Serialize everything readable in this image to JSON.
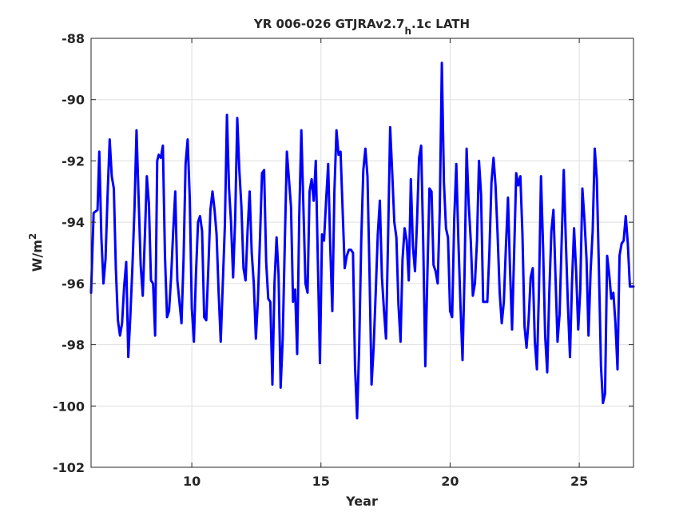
{
  "chart_data": {
    "type": "line",
    "title_parts": [
      "YR 006-026 GTJRAv2.7",
      "h",
      ".1c LATH"
    ],
    "xlabel": "Year",
    "ylabel": "W/m",
    "ylabel_sup": "2",
    "xlim": [
      6.1,
      27.1
    ],
    "ylim": [
      -102,
      -88
    ],
    "xticks": [
      10,
      15,
      20,
      25
    ],
    "yticks": [
      -102,
      -100,
      -98,
      -96,
      -94,
      -92,
      -90,
      -88
    ],
    "grid": true,
    "color": "#0000ff",
    "series": [
      {
        "values": [
          [
            6.1,
            -96.3
          ],
          [
            6.2,
            -93.7
          ],
          [
            6.35,
            -93.6
          ],
          [
            6.42,
            -91.7
          ],
          [
            6.5,
            -94.5
          ],
          [
            6.58,
            -96.0
          ],
          [
            6.66,
            -95.2
          ],
          [
            6.74,
            -93.1
          ],
          [
            6.82,
            -91.3
          ],
          [
            6.9,
            -92.5
          ],
          [
            6.98,
            -92.9
          ],
          [
            7.06,
            -95.5
          ],
          [
            7.14,
            -97.2
          ],
          [
            7.22,
            -97.7
          ],
          [
            7.3,
            -97.3
          ],
          [
            7.38,
            -96.1
          ],
          [
            7.46,
            -95.3
          ],
          [
            7.54,
            -98.4
          ],
          [
            7.62,
            -97.1
          ],
          [
            7.7,
            -95.5
          ],
          [
            7.78,
            -93.6
          ],
          [
            7.86,
            -91.0
          ],
          [
            7.94,
            -93.2
          ],
          [
            8.02,
            -95.4
          ],
          [
            8.1,
            -96.4
          ],
          [
            8.18,
            -94.5
          ],
          [
            8.26,
            -92.5
          ],
          [
            8.34,
            -93.4
          ],
          [
            8.42,
            -95.9
          ],
          [
            8.5,
            -96.0
          ],
          [
            8.58,
            -97.7
          ],
          [
            8.66,
            -92.0
          ],
          [
            8.72,
            -91.8
          ],
          [
            8.8,
            -91.9
          ],
          [
            8.88,
            -91.5
          ],
          [
            8.96,
            -95.1
          ],
          [
            9.04,
            -97.1
          ],
          [
            9.12,
            -96.9
          ],
          [
            9.2,
            -95.8
          ],
          [
            9.28,
            -94.3
          ],
          [
            9.36,
            -93.0
          ],
          [
            9.44,
            -95.9
          ],
          [
            9.52,
            -96.6
          ],
          [
            9.6,
            -97.3
          ],
          [
            9.68,
            -95.2
          ],
          [
            9.76,
            -92.1
          ],
          [
            9.84,
            -91.3
          ],
          [
            9.92,
            -93.2
          ],
          [
            10.0,
            -96.8
          ],
          [
            10.08,
            -97.9
          ],
          [
            10.16,
            -95.7
          ],
          [
            10.24,
            -94.0
          ],
          [
            10.32,
            -93.8
          ],
          [
            10.4,
            -94.3
          ],
          [
            10.48,
            -97.1
          ],
          [
            10.56,
            -97.2
          ],
          [
            10.64,
            -95.5
          ],
          [
            10.72,
            -93.6
          ],
          [
            10.8,
            -93.0
          ],
          [
            10.88,
            -93.6
          ],
          [
            10.96,
            -94.4
          ],
          [
            11.04,
            -96.3
          ],
          [
            11.12,
            -97.9
          ],
          [
            11.2,
            -96.0
          ],
          [
            11.28,
            -94.1
          ],
          [
            11.36,
            -90.5
          ],
          [
            11.44,
            -92.9
          ],
          [
            11.52,
            -94.0
          ],
          [
            11.6,
            -95.8
          ],
          [
            11.68,
            -93.9
          ],
          [
            11.76,
            -90.6
          ],
          [
            11.84,
            -92.3
          ],
          [
            11.92,
            -93.5
          ],
          [
            12.0,
            -95.5
          ],
          [
            12.08,
            -95.9
          ],
          [
            12.16,
            -94.3
          ],
          [
            12.24,
            -93.0
          ],
          [
            12.32,
            -95.0
          ],
          [
            12.4,
            -96.0
          ],
          [
            12.48,
            -97.8
          ],
          [
            12.56,
            -96.5
          ],
          [
            12.64,
            -94.5
          ],
          [
            12.72,
            -92.4
          ],
          [
            12.8,
            -92.3
          ],
          [
            12.88,
            -95.3
          ],
          [
            12.96,
            -96.5
          ],
          [
            13.04,
            -96.6
          ],
          [
            13.12,
            -99.3
          ],
          [
            13.2,
            -96.0
          ],
          [
            13.28,
            -94.5
          ],
          [
            13.36,
            -95.7
          ],
          [
            13.44,
            -99.4
          ],
          [
            13.52,
            -97.8
          ],
          [
            13.6,
            -94.7
          ],
          [
            13.68,
            -91.7
          ],
          [
            13.76,
            -92.6
          ],
          [
            13.84,
            -93.5
          ],
          [
            13.92,
            -96.6
          ],
          [
            14.0,
            -96.2
          ],
          [
            14.08,
            -98.3
          ],
          [
            14.16,
            -93.8
          ],
          [
            14.24,
            -91.0
          ],
          [
            14.32,
            -93.5
          ],
          [
            14.4,
            -96.0
          ],
          [
            14.48,
            -96.3
          ],
          [
            14.56,
            -93.0
          ],
          [
            14.64,
            -92.6
          ],
          [
            14.72,
            -93.3
          ],
          [
            14.8,
            -92.0
          ],
          [
            14.88,
            -95.3
          ],
          [
            14.96,
            -98.6
          ],
          [
            15.04,
            -94.4
          ],
          [
            15.12,
            -94.6
          ],
          [
            15.2,
            -93.3
          ],
          [
            15.28,
            -92.1
          ],
          [
            15.36,
            -94.8
          ],
          [
            15.44,
            -96.9
          ],
          [
            15.52,
            -93.0
          ],
          [
            15.6,
            -91.0
          ],
          [
            15.68,
            -91.8
          ],
          [
            15.76,
            -91.7
          ],
          [
            15.84,
            -93.6
          ],
          [
            15.92,
            -95.5
          ],
          [
            16.0,
            -95.1
          ],
          [
            16.08,
            -94.9
          ],
          [
            16.16,
            -94.9
          ],
          [
            16.24,
            -95.0
          ],
          [
            16.32,
            -98.7
          ],
          [
            16.4,
            -100.4
          ],
          [
            16.48,
            -98.1
          ],
          [
            16.56,
            -94.6
          ],
          [
            16.64,
            -92.3
          ],
          [
            16.72,
            -91.6
          ],
          [
            16.8,
            -92.5
          ],
          [
            16.88,
            -95.7
          ],
          [
            16.96,
            -99.3
          ],
          [
            17.04,
            -98.1
          ],
          [
            17.12,
            -96.3
          ],
          [
            17.2,
            -94.4
          ],
          [
            17.28,
            -93.3
          ],
          [
            17.36,
            -95.8
          ],
          [
            17.44,
            -96.9
          ],
          [
            17.52,
            -97.8
          ],
          [
            17.6,
            -94.5
          ],
          [
            17.68,
            -90.9
          ],
          [
            17.76,
            -92.4
          ],
          [
            17.84,
            -94.0
          ],
          [
            17.92,
            -94.5
          ],
          [
            18.0,
            -96.7
          ],
          [
            18.08,
            -97.9
          ],
          [
            18.16,
            -95.2
          ],
          [
            18.24,
            -94.2
          ],
          [
            18.32,
            -94.6
          ],
          [
            18.4,
            -95.9
          ],
          [
            18.48,
            -92.6
          ],
          [
            18.56,
            -94.8
          ],
          [
            18.64,
            -95.6
          ],
          [
            18.72,
            -94.0
          ],
          [
            18.8,
            -91.9
          ],
          [
            18.88,
            -91.5
          ],
          [
            18.96,
            -94.7
          ],
          [
            19.04,
            -98.7
          ],
          [
            19.12,
            -95.7
          ],
          [
            19.2,
            -92.9
          ],
          [
            19.28,
            -93.0
          ],
          [
            19.36,
            -95.4
          ],
          [
            19.44,
            -95.6
          ],
          [
            19.52,
            -96.0
          ],
          [
            19.6,
            -93.6
          ],
          [
            19.68,
            -88.8
          ],
          [
            19.76,
            -92.7
          ],
          [
            19.84,
            -94.2
          ],
          [
            19.92,
            -94.5
          ],
          [
            20.0,
            -96.9
          ],
          [
            20.08,
            -97.1
          ],
          [
            20.16,
            -93.9
          ],
          [
            20.24,
            -92.1
          ],
          [
            20.32,
            -94.6
          ],
          [
            20.4,
            -96.7
          ],
          [
            20.48,
            -98.5
          ],
          [
            20.56,
            -95.7
          ],
          [
            20.64,
            -91.6
          ],
          [
            20.72,
            -93.4
          ],
          [
            20.8,
            -94.6
          ],
          [
            20.88,
            -96.4
          ],
          [
            20.96,
            -96.0
          ],
          [
            21.04,
            -94.6
          ],
          [
            21.12,
            -92.0
          ],
          [
            21.2,
            -93.1
          ],
          [
            21.28,
            -96.6
          ],
          [
            21.36,
            -96.6
          ],
          [
            21.44,
            -96.6
          ],
          [
            21.52,
            -95.0
          ],
          [
            21.6,
            -92.7
          ],
          [
            21.68,
            -91.9
          ],
          [
            21.76,
            -92.8
          ],
          [
            21.84,
            -94.4
          ],
          [
            21.92,
            -96.3
          ],
          [
            22.0,
            -97.3
          ],
          [
            22.08,
            -96.6
          ],
          [
            22.16,
            -94.8
          ],
          [
            22.24,
            -93.2
          ],
          [
            22.32,
            -95.5
          ],
          [
            22.4,
            -97.5
          ],
          [
            22.48,
            -95.0
          ],
          [
            22.56,
            -92.4
          ],
          [
            22.64,
            -92.8
          ],
          [
            22.72,
            -92.5
          ],
          [
            22.8,
            -94.4
          ],
          [
            22.88,
            -97.4
          ],
          [
            22.96,
            -98.1
          ],
          [
            23.04,
            -97.2
          ],
          [
            23.12,
            -95.8
          ],
          [
            23.2,
            -95.5
          ],
          [
            23.28,
            -97.9
          ],
          [
            23.36,
            -98.8
          ],
          [
            23.44,
            -96.2
          ],
          [
            23.52,
            -92.5
          ],
          [
            23.6,
            -94.8
          ],
          [
            23.68,
            -97.7
          ],
          [
            23.76,
            -98.9
          ],
          [
            23.84,
            -96.3
          ],
          [
            23.92,
            -94.3
          ],
          [
            24.0,
            -93.6
          ],
          [
            24.08,
            -95.8
          ],
          [
            24.16,
            -97.9
          ],
          [
            24.24,
            -97.0
          ],
          [
            24.32,
            -94.6
          ],
          [
            24.4,
            -92.3
          ],
          [
            24.48,
            -94.6
          ],
          [
            24.56,
            -96.7
          ],
          [
            24.64,
            -98.4
          ],
          [
            24.72,
            -96.0
          ],
          [
            24.8,
            -94.2
          ],
          [
            24.88,
            -95.6
          ],
          [
            24.96,
            -97.5
          ],
          [
            25.04,
            -96.2
          ],
          [
            25.12,
            -92.9
          ],
          [
            25.2,
            -93.9
          ],
          [
            25.28,
            -95.2
          ],
          [
            25.36,
            -97.7
          ],
          [
            25.44,
            -95.6
          ],
          [
            25.52,
            -94.3
          ],
          [
            25.6,
            -91.6
          ],
          [
            25.68,
            -92.6
          ],
          [
            25.76,
            -95.5
          ],
          [
            25.84,
            -98.7
          ],
          [
            25.92,
            -99.9
          ],
          [
            26.0,
            -99.6
          ],
          [
            26.08,
            -95.1
          ],
          [
            26.16,
            -95.7
          ],
          [
            26.24,
            -96.5
          ],
          [
            26.32,
            -96.3
          ],
          [
            26.4,
            -97.3
          ],
          [
            26.48,
            -98.8
          ],
          [
            26.56,
            -95.1
          ],
          [
            26.64,
            -94.7
          ],
          [
            26.72,
            -94.6
          ],
          [
            26.8,
            -93.8
          ],
          [
            26.88,
            -94.7
          ],
          [
            26.96,
            -96.1
          ],
          [
            27.1,
            -96.1
          ]
        ]
      }
    ]
  }
}
